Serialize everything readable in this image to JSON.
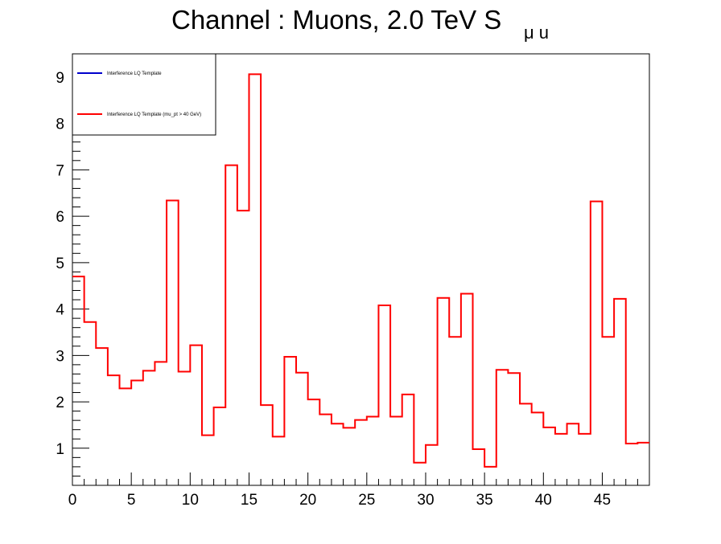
{
  "chart_data": {
    "type": "histogram-step",
    "title_main": "Channel : Muons, 2.0 TeV S",
    "title_sub": "μ u",
    "xlim": [
      0,
      49
    ],
    "ylim": [
      0.2,
      9.5
    ],
    "x_ticks": [
      0,
      5,
      10,
      15,
      20,
      25,
      30,
      35,
      40,
      45
    ],
    "y_ticks": [
      1,
      2,
      3,
      4,
      5,
      6,
      7,
      8,
      9
    ],
    "bin_edges_start": 0,
    "bin_width": 1,
    "legend": {
      "position": "top-left",
      "entries": [
        {
          "label": "Interference LQ Template",
          "color": "#0000cc"
        },
        {
          "label": "Interference LQ Template (mu_pt > 40 GeV)",
          "color": "#ff0000"
        }
      ]
    },
    "series": [
      {
        "name": "Interference LQ Template (mu_pt > 40 GeV)",
        "color": "#ff0000",
        "values": [
          4.7,
          3.72,
          3.16,
          2.57,
          2.29,
          2.46,
          2.67,
          2.86,
          6.34,
          2.65,
          3.22,
          1.28,
          1.88,
          7.1,
          6.12,
          9.06,
          1.93,
          1.25,
          2.97,
          2.63,
          2.05,
          1.73,
          1.53,
          1.44,
          1.61,
          1.68,
          4.08,
          1.68,
          2.16,
          0.69,
          1.07,
          4.24,
          3.4,
          4.33,
          0.98,
          0.6,
          2.69,
          2.62,
          1.96,
          1.77,
          1.45,
          1.31,
          1.53,
          1.31,
          6.32,
          3.4,
          4.22,
          1.1,
          1.12
        ]
      }
    ]
  }
}
